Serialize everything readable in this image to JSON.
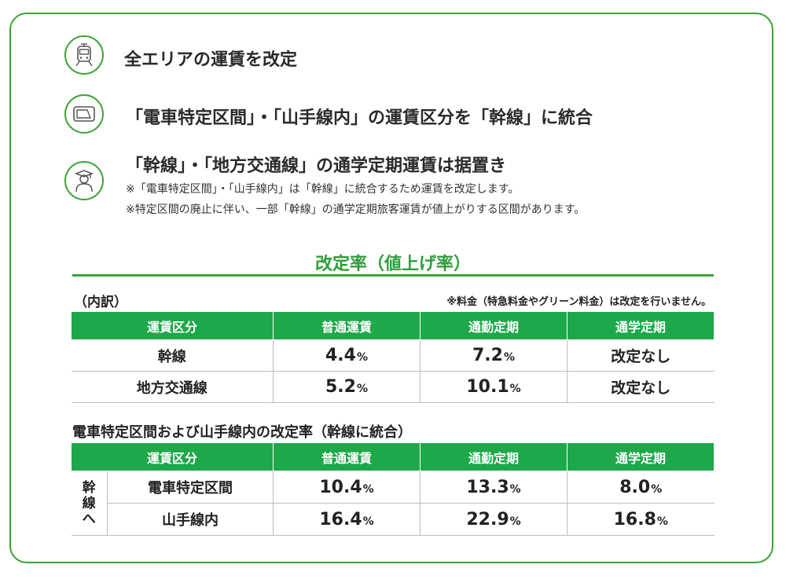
{
  "items": [
    {
      "icon": "train-icon",
      "title": "全エリアの運賃を改定"
    },
    {
      "icon": "ic-card-icon",
      "title": "「電車特定区間」・「山手線内」の運賃区分を「幹線」に統合"
    },
    {
      "icon": "student-icon",
      "title": "「幹線」・「地方交通線」の通学定期運賃は据置き",
      "notes": [
        "※「電車特定区間」・「山手線内」は「幹線」に統合するため運賃を改定します。",
        "※特定区間の廃止に伴い、一部「幹線」の通学定期旅客運賃が値上がりする区間があります。"
      ]
    }
  ],
  "rate_section": {
    "title": "改定率（値上げ率）",
    "breakdown_label": "（内訳）",
    "exclusion_note": "※料金（特急料金やグリーン料金）は改定を行いません。"
  },
  "table1": {
    "headers": [
      "運賃区分",
      "普通運賃",
      "通勤定期",
      "通学定期"
    ],
    "rows": [
      {
        "label": "幹線",
        "regular": "4.4",
        "commuter": "7.2",
        "student": "改定なし"
      },
      {
        "label": "地方交通線",
        "regular": "5.2",
        "commuter": "10.1",
        "student": "改定なし"
      }
    ]
  },
  "table2": {
    "title": "電車特定区間および山手線内の改定率（幹線に統合）",
    "headers": [
      "運賃区分",
      "普通運賃",
      "通勤定期",
      "通学定期"
    ],
    "group_label": [
      "幹",
      "線",
      "へ"
    ],
    "rows": [
      {
        "label": "電車特定区間",
        "regular": "10.4",
        "commuter": "13.3",
        "student": "8.0"
      },
      {
        "label": "山手線内",
        "regular": "16.4",
        "commuter": "22.9",
        "student": "16.8"
      }
    ]
  },
  "percent_sign": "%",
  "colors": {
    "accent": "#3aa336",
    "header_bg": "#1ea84a",
    "title_green": "#2f9e3a"
  }
}
